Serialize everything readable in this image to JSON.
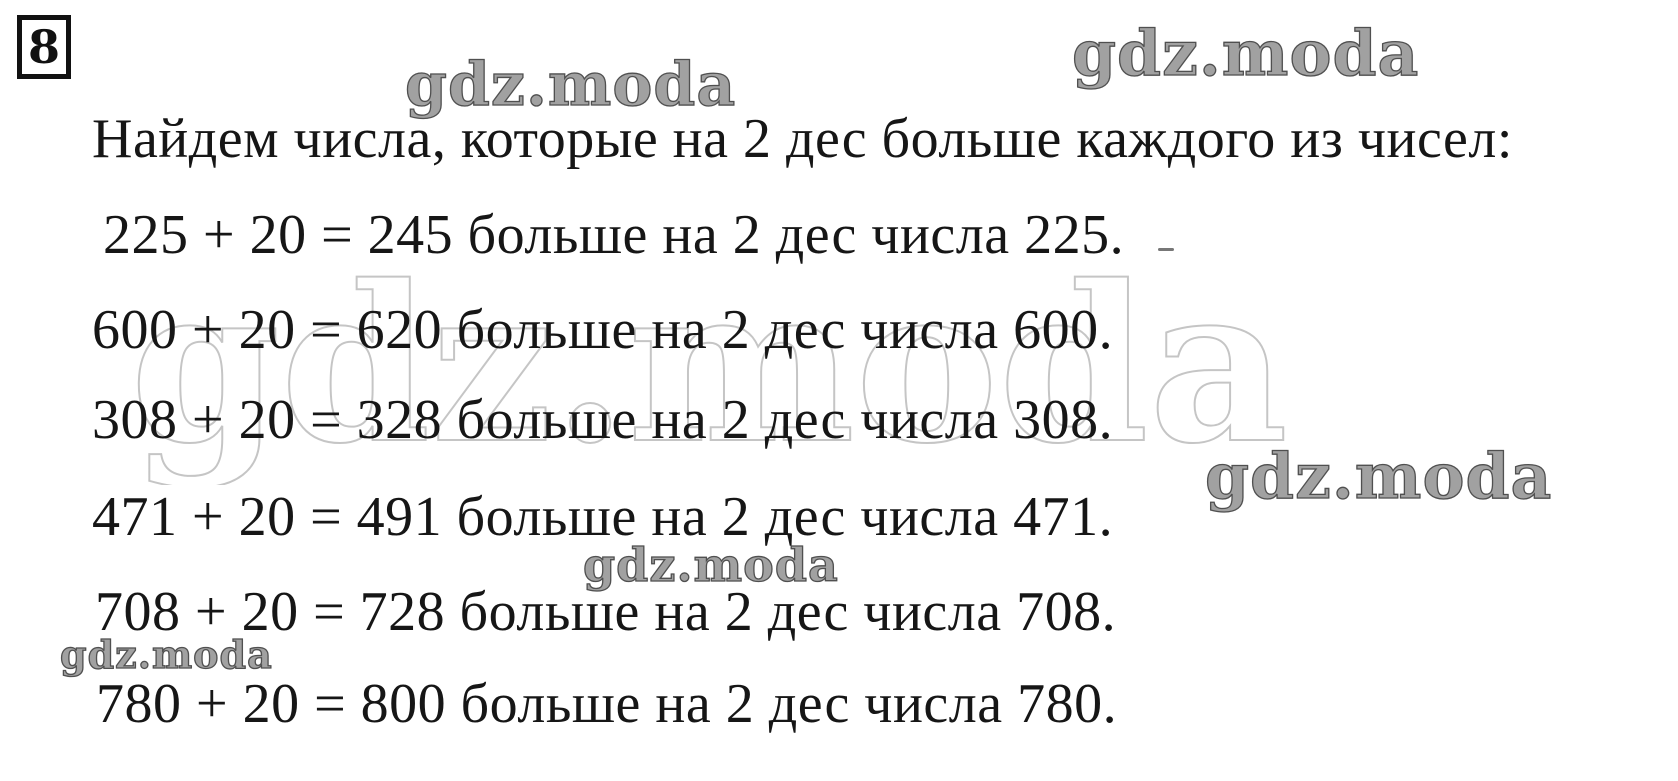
{
  "page": {
    "background_color": "#ffffff",
    "text_color": "#161616"
  },
  "problem": {
    "number": "8",
    "intro": "Найдем числа, которые на 2 дес больше каждого из чисел:",
    "equations": [
      "225 + 20 = 245 больше на 2 дес числа 225.",
      "600 + 20 = 620 больше на 2 дес числа 600.",
      "308 + 20 = 328 больше на 2 дес числа 308.",
      "471 + 20 = 491 больше на 2 дес числа 471.",
      "708 + 20 = 728 больше на 2 дес числа 708.",
      "780 + 20 = 800 больше на 2 дес числа 780."
    ]
  },
  "watermark": {
    "text": "gdz.moda",
    "color": "#9a9a9a",
    "outline_color": "#424242"
  }
}
